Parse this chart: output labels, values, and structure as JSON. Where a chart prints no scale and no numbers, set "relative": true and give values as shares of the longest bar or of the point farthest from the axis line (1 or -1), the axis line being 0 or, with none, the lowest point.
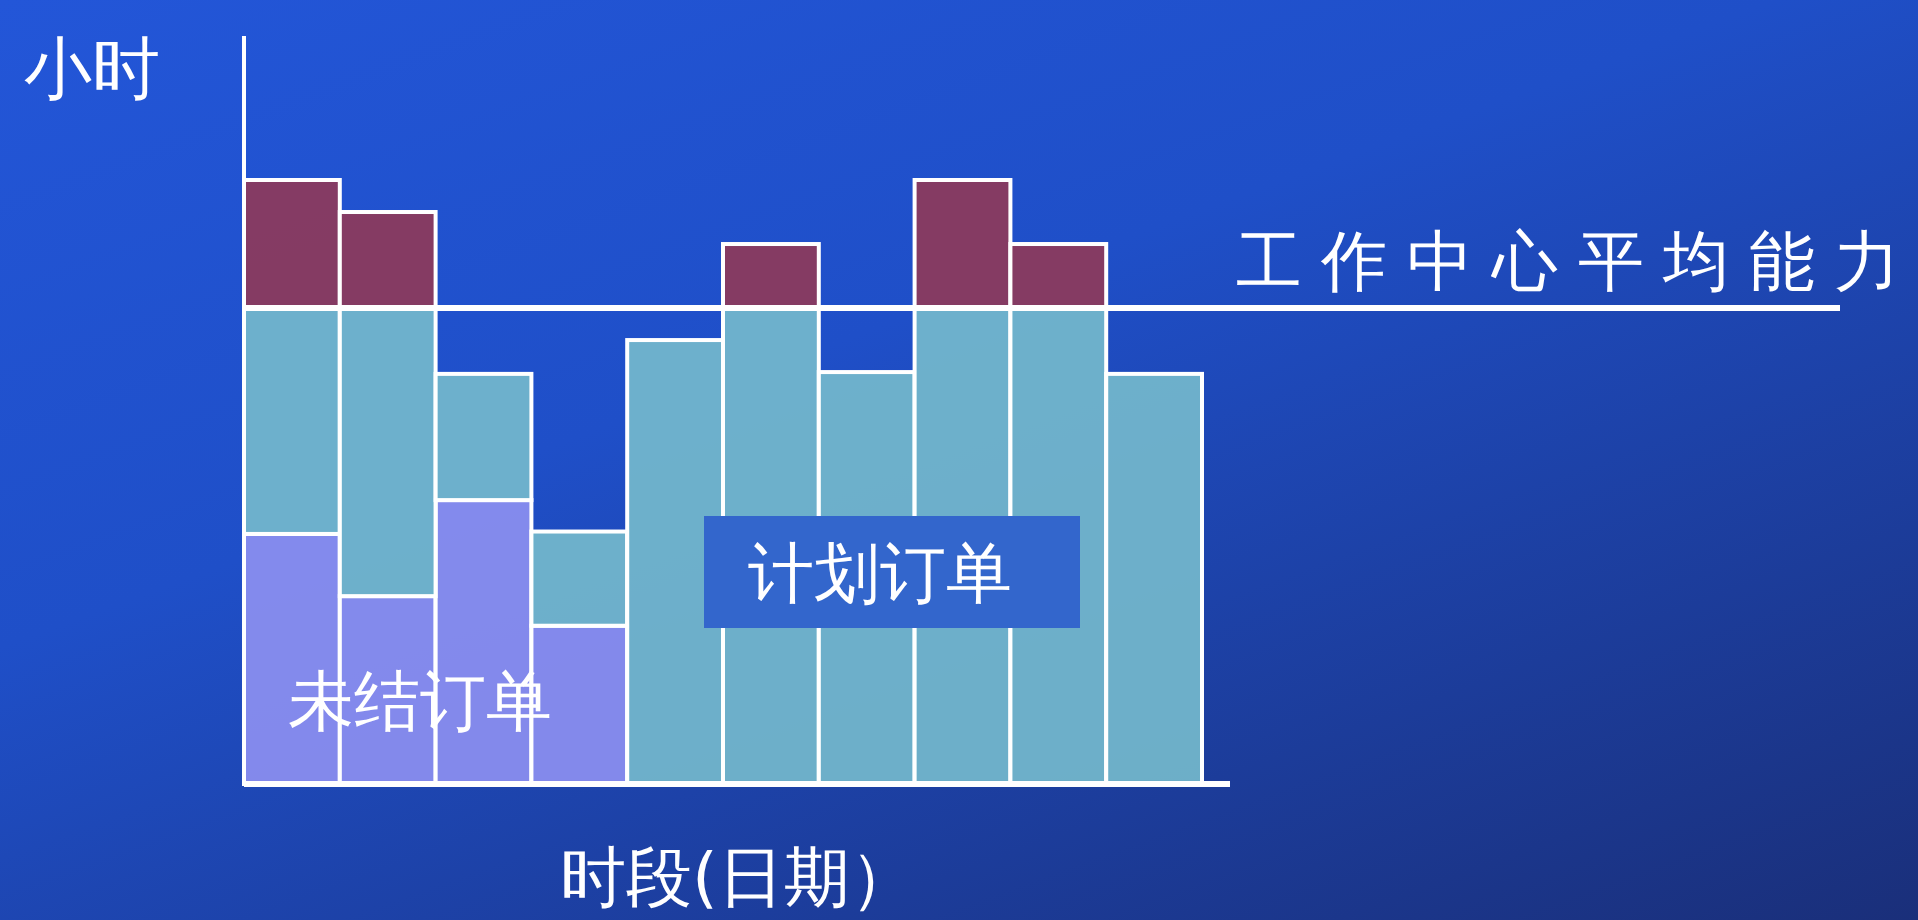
{
  "chart_data": {
    "type": "bar",
    "stacked": true,
    "relative": true,
    "xlabel": "时段(日期）",
    "ylabel": "小时",
    "categories": [
      null,
      null,
      null,
      null,
      null,
      null,
      null,
      null,
      null,
      null
    ],
    "series": [
      {
        "name": "未结订单",
        "color": "#8c8ff0",
        "values": [
          0.414,
          0.311,
          0.47,
          0.262,
          0,
          0,
          0,
          0,
          0,
          0
        ]
      },
      {
        "name": "计划订单",
        "color": "#74b8cc",
        "values": [
          0.374,
          0.477,
          0.209,
          0.156,
          0.735,
          0.788,
          0.682,
          0.788,
          0.788,
          0.679
        ]
      },
      {
        "color": "#8e3a5a",
        "values": [
          0.212,
          0.159,
          null,
          null,
          null,
          0.106,
          null,
          0.212,
          0.106,
          null
        ]
      }
    ],
    "ref_lines": [
      {
        "axis": "y",
        "value": 0.788,
        "label": "工作中心平均能力",
        "color": "#ffffff"
      }
    ]
  }
}
